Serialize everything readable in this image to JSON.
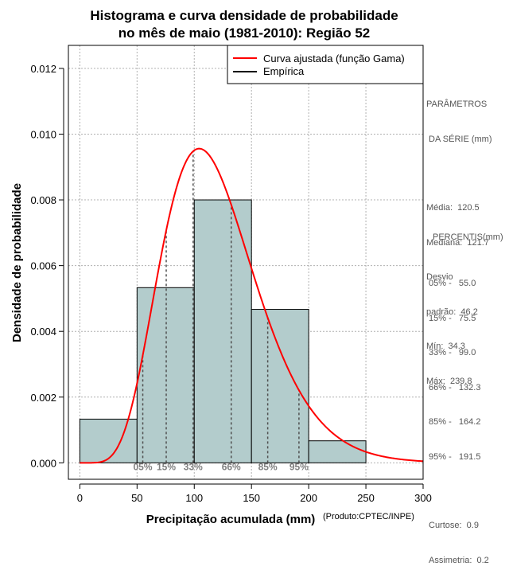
{
  "chart_data": {
    "type": "histogram",
    "title_line1": "Histograma e curva densidade de probabilidade",
    "title_line2": "no mês de maio (1981-2010): Região 52",
    "xlabel": "Precipitação acumulada (mm)",
    "ylabel": "Densidade de probabilidade",
    "credit": "(Produto:CPTEC/INPE)",
    "xlim": [
      -10,
      300
    ],
    "ylim": [
      -0.0005,
      0.0127
    ],
    "x_ticks": [
      0,
      50,
      100,
      150,
      200,
      250,
      300
    ],
    "y_ticks": [
      0.0,
      0.002,
      0.004,
      0.006,
      0.008,
      0.01,
      0.012
    ],
    "y_tick_labels": [
      "0.000",
      "0.002",
      "0.004",
      "0.006",
      "0.008",
      "0.010",
      "0.012"
    ],
    "bins": [
      {
        "from": 0,
        "to": 50,
        "density": 0.00133
      },
      {
        "from": 50,
        "to": 100,
        "density": 0.00533
      },
      {
        "from": 100,
        "to": 150,
        "density": 0.008
      },
      {
        "from": 150,
        "to": 200,
        "density": 0.00467
      },
      {
        "from": 200,
        "to": 250,
        "density": 0.00067
      }
    ],
    "gamma_fit": {
      "shape": 7.41,
      "scale": 16.27
    },
    "percentile_lines": [
      {
        "label": "05%",
        "x": 55.0
      },
      {
        "label": "15%",
        "x": 75.5
      },
      {
        "label": "33%",
        "x": 99.0
      },
      {
        "label": "66%",
        "x": 132.3
      },
      {
        "label": "85%",
        "x": 164.2
      },
      {
        "label": "95%",
        "x": 191.5
      }
    ],
    "legend": [
      {
        "label": "Curva ajustada (função Gama)",
        "color": "#ff0000"
      },
      {
        "label": "Empírica",
        "color": "#000000"
      }
    ],
    "grid": true,
    "legend_position": "top-right",
    "bar_color": "#b3cccc",
    "curve_color": "#ff0000"
  },
  "stats_panel": {
    "title_line1": "PARÂMETROS",
    "title_line2": " DA SÉRIE (mm)",
    "lines": [
      "Média:  120.5",
      "Mediana:  121.7",
      "Desvio",
      "padrão:  46.2",
      "Mín:  34.3",
      "Máx:  239.8"
    ]
  },
  "percentis_panel": {
    "title": "PERCENTIS(mm)",
    "lines": [
      "05% -   55.0",
      "15% -   75.5",
      "33% -   99.0",
      "66% -   132.3",
      "85% -   164.2",
      "95% -   191.5"
    ],
    "extra_lines": [
      "Curtose:  0.9",
      "Assimetria:  0.2"
    ]
  }
}
